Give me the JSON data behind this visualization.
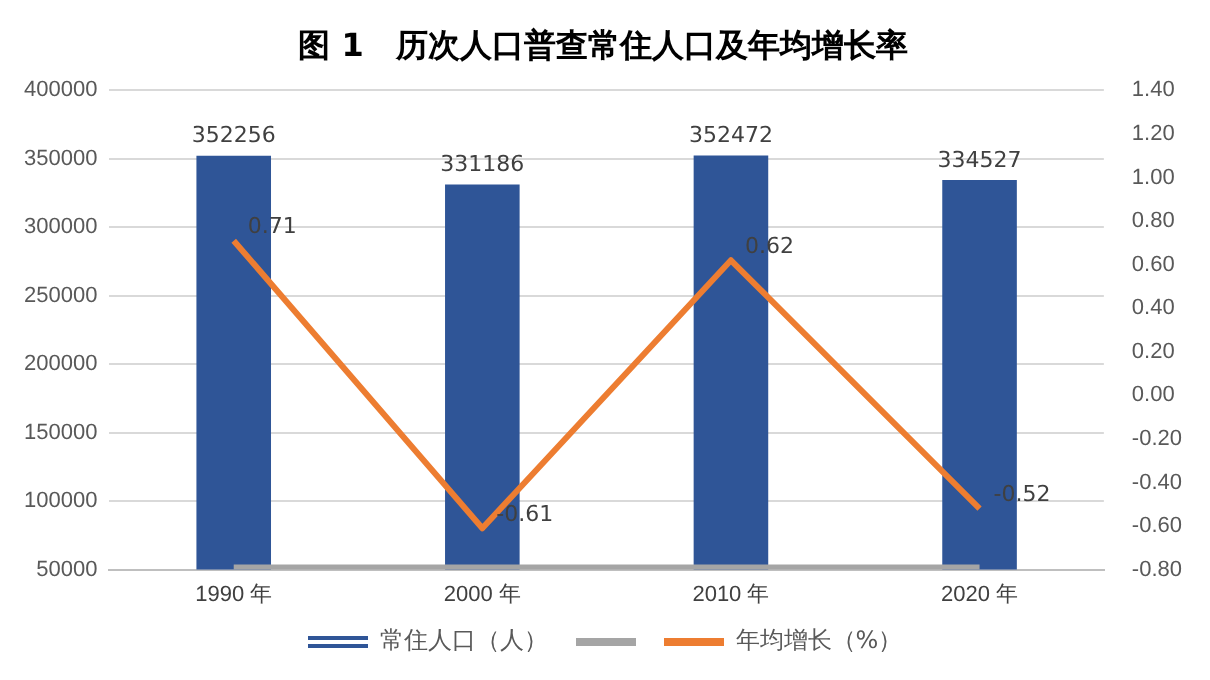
{
  "chart_data": {
    "type": "bar",
    "title": "图 1　历次人口普查常住人口及年均增长率",
    "categories": [
      "1990 年",
      "2000 年",
      "2010 年",
      "2020 年"
    ],
    "series": [
      {
        "name": "常住人口（人）",
        "color": "#2f5597",
        "values": [
          352256,
          331186,
          352472,
          334527
        ],
        "value_labels": [
          "352256",
          "331186",
          "352472",
          "334527"
        ]
      },
      {
        "type": "line",
        "color": "#a5a5a5",
        "values": [
          50000,
          50000,
          50000,
          50000
        ]
      },
      {
        "name": "年均增长（%）",
        "type": "line",
        "axis": "y2",
        "color": "#ed7d31",
        "values": [
          0.71,
          -0.61,
          0.62,
          -0.52
        ],
        "value_labels": [
          "0.71",
          "-0.61",
          "0.62",
          "-0.52"
        ]
      }
    ],
    "ylim": [
      50000,
      400000
    ],
    "yticks": [
      50000,
      100000,
      150000,
      200000,
      250000,
      300000,
      350000,
      400000
    ],
    "y2lim": [
      -0.8,
      1.4
    ],
    "y2ticks": [
      {
        "value": -0.8,
        "label": "-0.80"
      },
      {
        "value": -0.6,
        "label": "-0.60"
      },
      {
        "value": -0.4,
        "label": "-0.40"
      },
      {
        "value": -0.2,
        "label": "-0.20"
      },
      {
        "value": 0,
        "label": "0.00"
      },
      {
        "value": 0.2,
        "label": "0.20"
      },
      {
        "value": 0.4,
        "label": "0.40"
      },
      {
        "value": 0.6,
        "label": "0.60"
      },
      {
        "value": 0.8,
        "label": "0.80"
      },
      {
        "value": 1,
        "label": "1.00"
      },
      {
        "value": 1.2,
        "label": "1.20"
      },
      {
        "value": 1.4,
        "label": "1.40"
      }
    ],
    "grid": "y",
    "legend": "bottom",
    "marker": "none"
  }
}
